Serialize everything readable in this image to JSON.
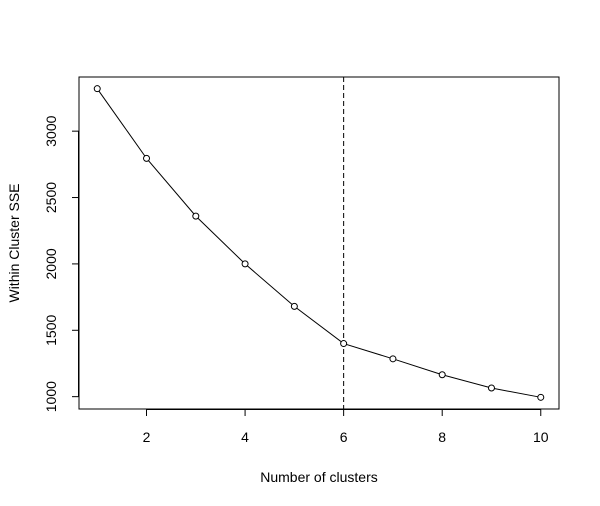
{
  "chart_data": {
    "type": "line",
    "title": "",
    "xlabel": "Number of clusters",
    "ylabel": "Within Cluster SSE",
    "x": [
      1,
      2,
      3,
      4,
      5,
      6,
      7,
      8,
      9,
      10
    ],
    "y": [
      3320,
      2795,
      2360,
      2000,
      1680,
      1400,
      1285,
      1165,
      1065,
      995
    ],
    "xlim": [
      0.63,
      10.37
    ],
    "ylim": [
      907,
      3408
    ],
    "xticks": [
      2,
      4,
      6,
      8,
      10
    ],
    "yticks": [
      1000,
      1500,
      2000,
      2500,
      3000
    ],
    "xtick_labels": [
      "2",
      "4",
      "6",
      "8",
      "10"
    ],
    "ytick_labels": [
      "1000",
      "1500",
      "2000",
      "2500",
      "3000"
    ],
    "reference_line": {
      "x": 6,
      "style": "dashed"
    },
    "grid": false,
    "marker": "open-circle",
    "line_color": "#000000"
  }
}
